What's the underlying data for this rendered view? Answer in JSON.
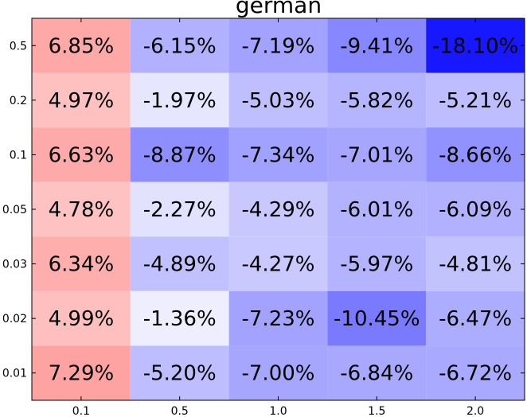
{
  "chart_data": {
    "type": "heatmap",
    "title": "german",
    "x_labels": [
      "0.1",
      "0.5",
      "1.0",
      "1.5",
      "2.0"
    ],
    "y_labels": [
      "0.5",
      "0.2",
      "0.1",
      "0.05",
      "0.03",
      "0.02",
      "0.01"
    ],
    "values": [
      [
        6.85,
        -6.15,
        -7.19,
        -9.41,
        -18.1
      ],
      [
        4.97,
        -1.97,
        -5.03,
        -5.82,
        -5.21
      ],
      [
        6.63,
        -8.87,
        -7.34,
        -7.01,
        -8.66
      ],
      [
        4.78,
        -2.27,
        -4.29,
        -6.01,
        -6.09
      ],
      [
        6.34,
        -4.89,
        -4.27,
        -5.97,
        -4.81
      ],
      [
        4.99,
        -1.36,
        -7.23,
        -10.45,
        -6.47
      ],
      [
        7.29,
        -5.2,
        -7.0,
        -6.84,
        -6.72
      ]
    ],
    "value_labels": [
      [
        "6.85%",
        "-6.15%",
        "-7.19%",
        "-9.41%",
        "-18.10%"
      ],
      [
        "4.97%",
        "-1.97%",
        "-5.03%",
        "-5.82%",
        "-5.21%"
      ],
      [
        "6.63%",
        "-8.87%",
        "-7.34%",
        "-7.01%",
        "-8.66%"
      ],
      [
        "4.78%",
        "-2.27%",
        "-4.29%",
        "-6.01%",
        "-6.09%"
      ],
      [
        "6.34%",
        "-4.89%",
        "-4.27%",
        "-5.97%",
        "-4.81%"
      ],
      [
        "4.99%",
        "-1.36%",
        "-7.23%",
        "-10.45%",
        "-6.47%"
      ],
      [
        "7.29%",
        "-5.20%",
        "-7.00%",
        "-6.84%",
        "-6.72%"
      ]
    ],
    "colormap": "bwr",
    "vmin": -20,
    "vmax": 20,
    "grid": false
  }
}
